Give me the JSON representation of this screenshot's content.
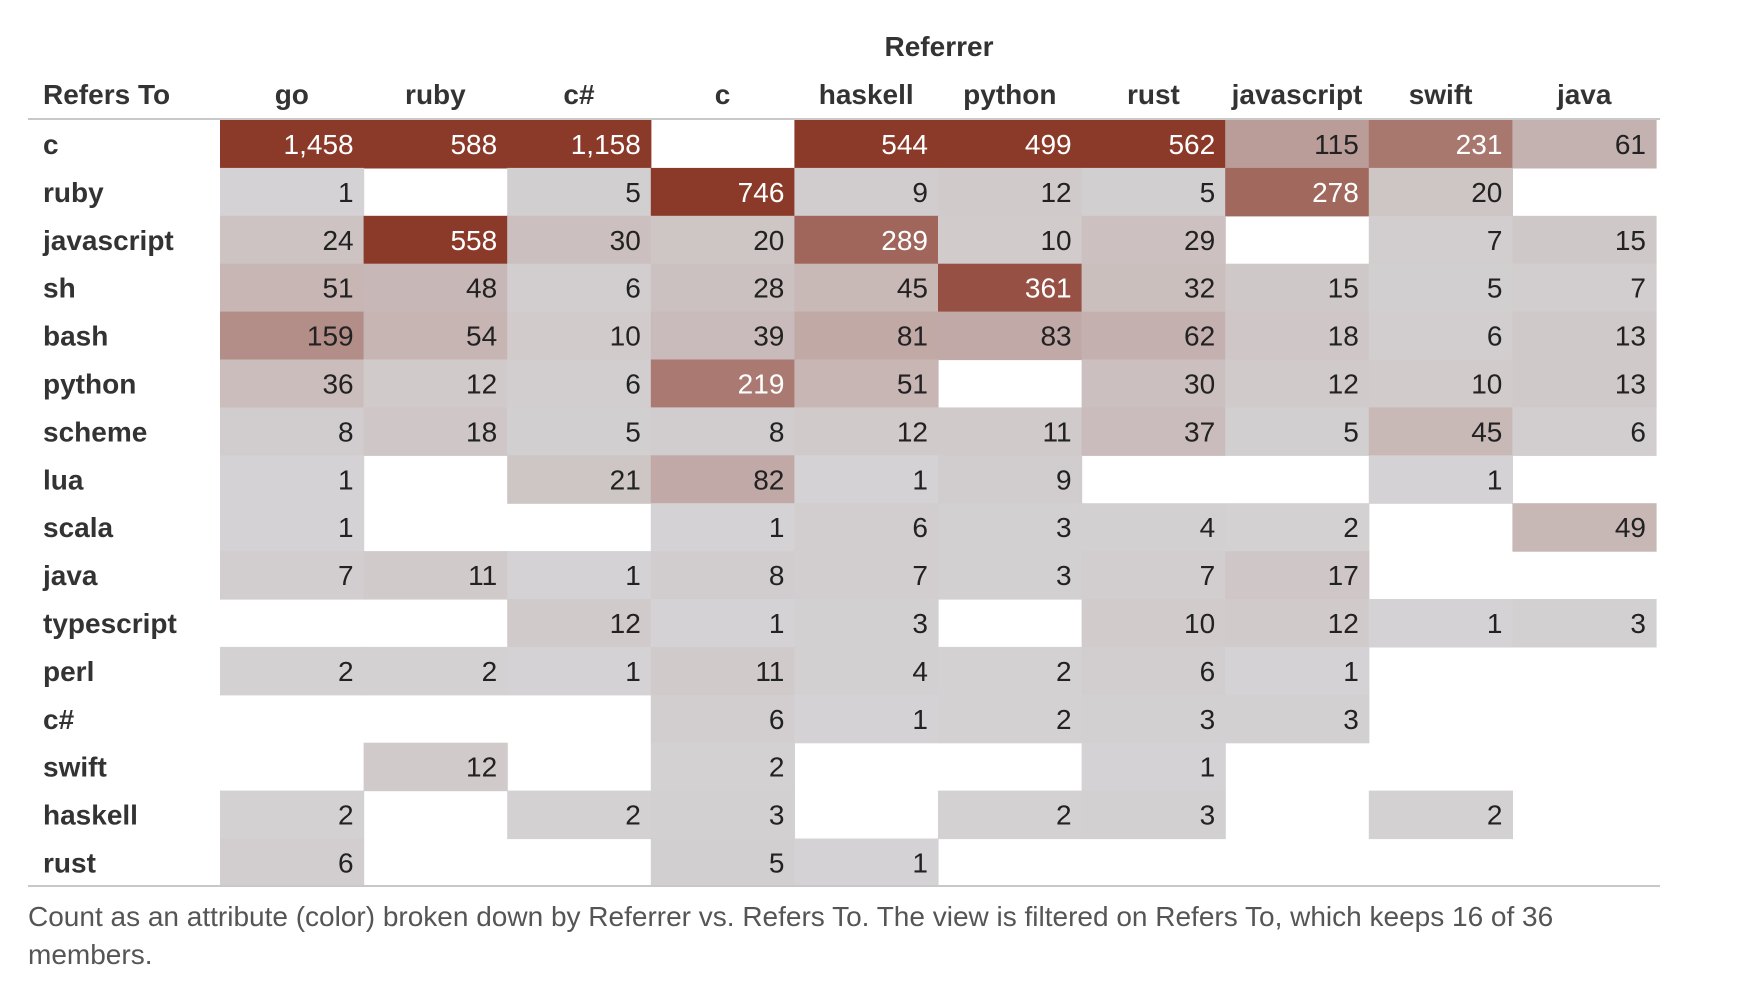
{
  "chart_data": {
    "type": "heatmap",
    "column_group_title": "Referrer",
    "row_header": "Refers To",
    "columns": [
      "go",
      "ruby",
      "c#",
      "c",
      "haskell",
      "python",
      "rust",
      "javascript",
      "swift",
      "java"
    ],
    "rows": [
      "c",
      "ruby",
      "javascript",
      "sh",
      "bash",
      "python",
      "scheme",
      "lua",
      "scala",
      "java",
      "typescript",
      "perl",
      "c#",
      "swift",
      "haskell",
      "rust"
    ],
    "values": [
      [
        1458,
        588,
        1158,
        null,
        544,
        499,
        562,
        115,
        231,
        61
      ],
      [
        1,
        null,
        5,
        746,
        9,
        12,
        5,
        278,
        20,
        null
      ],
      [
        24,
        558,
        30,
        20,
        289,
        10,
        29,
        null,
        7,
        15
      ],
      [
        51,
        48,
        6,
        28,
        45,
        361,
        32,
        15,
        5,
        7
      ],
      [
        159,
        54,
        10,
        39,
        81,
        83,
        62,
        18,
        6,
        13
      ],
      [
        36,
        12,
        6,
        219,
        51,
        null,
        30,
        12,
        10,
        13
      ],
      [
        8,
        18,
        5,
        8,
        12,
        11,
        37,
        5,
        45,
        6
      ],
      [
        1,
        null,
        21,
        82,
        1,
        9,
        null,
        null,
        1,
        null
      ],
      [
        1,
        null,
        null,
        1,
        6,
        3,
        4,
        2,
        null,
        49
      ],
      [
        7,
        11,
        1,
        8,
        7,
        3,
        7,
        17,
        null,
        null
      ],
      [
        null,
        null,
        12,
        1,
        3,
        null,
        10,
        12,
        1,
        3
      ],
      [
        2,
        2,
        1,
        11,
        4,
        2,
        6,
        1,
        null,
        null
      ],
      [
        null,
        null,
        null,
        6,
        1,
        2,
        3,
        3,
        null,
        null
      ],
      [
        null,
        12,
        null,
        2,
        null,
        null,
        1,
        null,
        null,
        null
      ],
      [
        2,
        null,
        2,
        3,
        null,
        2,
        3,
        null,
        2,
        null
      ],
      [
        6,
        null,
        null,
        5,
        1,
        null,
        null,
        null,
        null,
        null
      ]
    ],
    "color_scale": {
      "low": "#d5d4d6",
      "high": "#8b3a2a",
      "cap": 450
    },
    "caption": "Count as an attribute (color) broken down by Referrer vs. Refers To. The view is filtered on Refers To, which keeps 16 of 36 members."
  }
}
